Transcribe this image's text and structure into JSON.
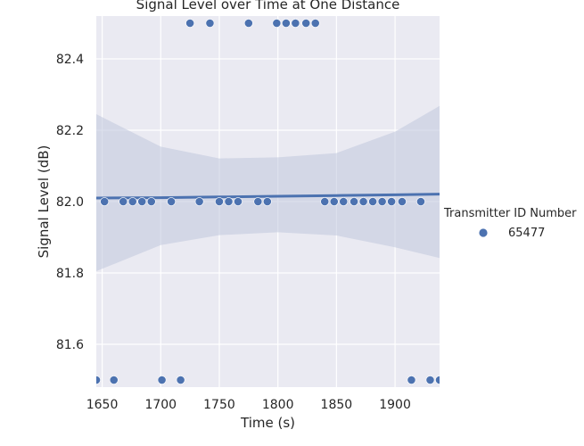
{
  "chart_data": {
    "type": "scatter",
    "title": "Signal Level over Time at One Distance",
    "xlabel": "Time (s)",
    "ylabel": "Signal Level (dB)",
    "xlim": [
      1645,
      1938
    ],
    "ylim": [
      81.48,
      82.52
    ],
    "xticks": [
      1650,
      1700,
      1750,
      1800,
      1850,
      1900
    ],
    "xtick_labels": [
      "1650",
      "1700",
      "1750",
      "1800",
      "1850",
      "1900"
    ],
    "yticks": [
      81.6,
      81.8,
      82.0,
      82.2,
      82.4
    ],
    "ytick_labels": [
      "81.6",
      "81.8",
      "82.0",
      "82.2",
      "82.4"
    ],
    "grid": true,
    "legend_title": "Transmitter ID Number",
    "legend_position": "right",
    "series": [
      {
        "name": "65477",
        "color": "#4c72b0",
        "points": [
          {
            "x": 1645,
            "y": 81.5
          },
          {
            "x": 1652,
            "y": 82.0
          },
          {
            "x": 1660,
            "y": 81.5
          },
          {
            "x": 1668,
            "y": 82.0
          },
          {
            "x": 1676,
            "y": 82.0
          },
          {
            "x": 1684,
            "y": 82.0
          },
          {
            "x": 1692,
            "y": 82.0
          },
          {
            "x": 1701,
            "y": 81.5
          },
          {
            "x": 1709,
            "y": 82.0
          },
          {
            "x": 1717,
            "y": 81.5
          },
          {
            "x": 1725,
            "y": 82.5
          },
          {
            "x": 1733,
            "y": 82.0
          },
          {
            "x": 1742,
            "y": 82.5
          },
          {
            "x": 1750,
            "y": 82.0
          },
          {
            "x": 1758,
            "y": 82.0
          },
          {
            "x": 1766,
            "y": 82.0
          },
          {
            "x": 1775,
            "y": 82.5
          },
          {
            "x": 1783,
            "y": 82.0
          },
          {
            "x": 1791,
            "y": 82.0
          },
          {
            "x": 1799,
            "y": 82.5
          },
          {
            "x": 1807,
            "y": 82.5
          },
          {
            "x": 1815,
            "y": 82.5
          },
          {
            "x": 1824,
            "y": 82.5
          },
          {
            "x": 1832,
            "y": 82.5
          },
          {
            "x": 1840,
            "y": 82.0
          },
          {
            "x": 1848,
            "y": 82.0
          },
          {
            "x": 1856,
            "y": 82.0
          },
          {
            "x": 1865,
            "y": 82.0
          },
          {
            "x": 1873,
            "y": 82.0
          },
          {
            "x": 1881,
            "y": 82.0
          },
          {
            "x": 1889,
            "y": 82.0
          },
          {
            "x": 1897,
            "y": 82.0
          },
          {
            "x": 1906,
            "y": 82.0
          },
          {
            "x": 1914,
            "y": 81.5
          },
          {
            "x": 1922,
            "y": 82.0
          },
          {
            "x": 1930,
            "y": 81.5
          },
          {
            "x": 1938,
            "y": 81.5
          }
        ]
      }
    ],
    "regression": {
      "color": "#4c72b0",
      "band_color": "#c0c7dc",
      "x": [
        1645,
        1700,
        1750,
        1800,
        1850,
        1900,
        1938
      ],
      "y": [
        82.01,
        82.011,
        82.013,
        82.015,
        82.017,
        82.019,
        82.021
      ],
      "ci_lower": [
        81.805,
        81.878,
        81.906,
        81.914,
        81.905,
        81.872,
        81.842
      ],
      "ci_upper": [
        82.245,
        82.154,
        82.121,
        82.124,
        82.136,
        82.196,
        82.268
      ]
    }
  }
}
